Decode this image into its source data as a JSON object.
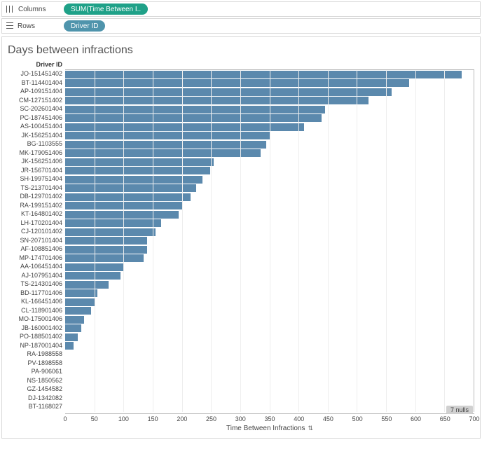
{
  "shelves": {
    "columns_label": "Columns",
    "rows_label": "Rows",
    "columns_pill": "SUM(Time Between I..",
    "rows_pill": "Driver ID",
    "columns_pill_color": "#1fa188",
    "rows_pill_color": "#4f94ac"
  },
  "chart": {
    "title": "Days between infractions",
    "y_axis_title": "Driver ID",
    "x_axis_title": "Time Between Infractions",
    "type": "bar",
    "bar_color": "#5b89ad",
    "background_color": "#ffffff",
    "grid_color": "#eeeeee",
    "border_color": "#d8d8d8",
    "title_fontsize": 16,
    "label_fontsize": 9,
    "xlim": [
      0,
      700
    ],
    "xtick_step": 50,
    "xticks": [
      0,
      50,
      100,
      150,
      200,
      250,
      300,
      350,
      400,
      450,
      500,
      550,
      600,
      650,
      700
    ],
    "nulls_badge": "7 nulls",
    "data": [
      {
        "label": "JO-151451402",
        "value": 680
      },
      {
        "label": "BT-114401404",
        "value": 590
      },
      {
        "label": "AP-109151404",
        "value": 560
      },
      {
        "label": "CM-127151402",
        "value": 520
      },
      {
        "label": "SC-202601404",
        "value": 445
      },
      {
        "label": "PC-187451406",
        "value": 440
      },
      {
        "label": "AS-100451404",
        "value": 410
      },
      {
        "label": "JK-156251404",
        "value": 350
      },
      {
        "label": "BG-1103555",
        "value": 345
      },
      {
        "label": "MK-179051406",
        "value": 335
      },
      {
        "label": "JK-156251406",
        "value": 255
      },
      {
        "label": "JR-156701404",
        "value": 248
      },
      {
        "label": "SH-199751404",
        "value": 235
      },
      {
        "label": "TS-213701404",
        "value": 225
      },
      {
        "label": "DB-129701402",
        "value": 215
      },
      {
        "label": "RA-199151402",
        "value": 200
      },
      {
        "label": "KT-164801402",
        "value": 195
      },
      {
        "label": "LH-170201404",
        "value": 165
      },
      {
        "label": "CJ-120101402",
        "value": 155
      },
      {
        "label": "SN-207101404",
        "value": 140
      },
      {
        "label": "AF-108851406",
        "value": 140
      },
      {
        "label": "MP-174701406",
        "value": 135
      },
      {
        "label": "AA-106451404",
        "value": 100
      },
      {
        "label": "AJ-107951404",
        "value": 95
      },
      {
        "label": "TS-214301406",
        "value": 75
      },
      {
        "label": "BD-117701406",
        "value": 55
      },
      {
        "label": "KL-166451406",
        "value": 50
      },
      {
        "label": "CL-118901406",
        "value": 45
      },
      {
        "label": "MO-175001406",
        "value": 32
      },
      {
        "label": "JB-160001402",
        "value": 28
      },
      {
        "label": "PO-188501402",
        "value": 22
      },
      {
        "label": "NP-187001404",
        "value": 15
      },
      {
        "label": "RA-1988558",
        "value": 0
      },
      {
        "label": "PV-1898558",
        "value": 0
      },
      {
        "label": "PA-906061",
        "value": 0
      },
      {
        "label": "NS-1850562",
        "value": 0
      },
      {
        "label": "GZ-1454582",
        "value": 0
      },
      {
        "label": "DJ-1342082",
        "value": 0
      },
      {
        "label": "BT-1168027",
        "value": 0
      }
    ]
  }
}
